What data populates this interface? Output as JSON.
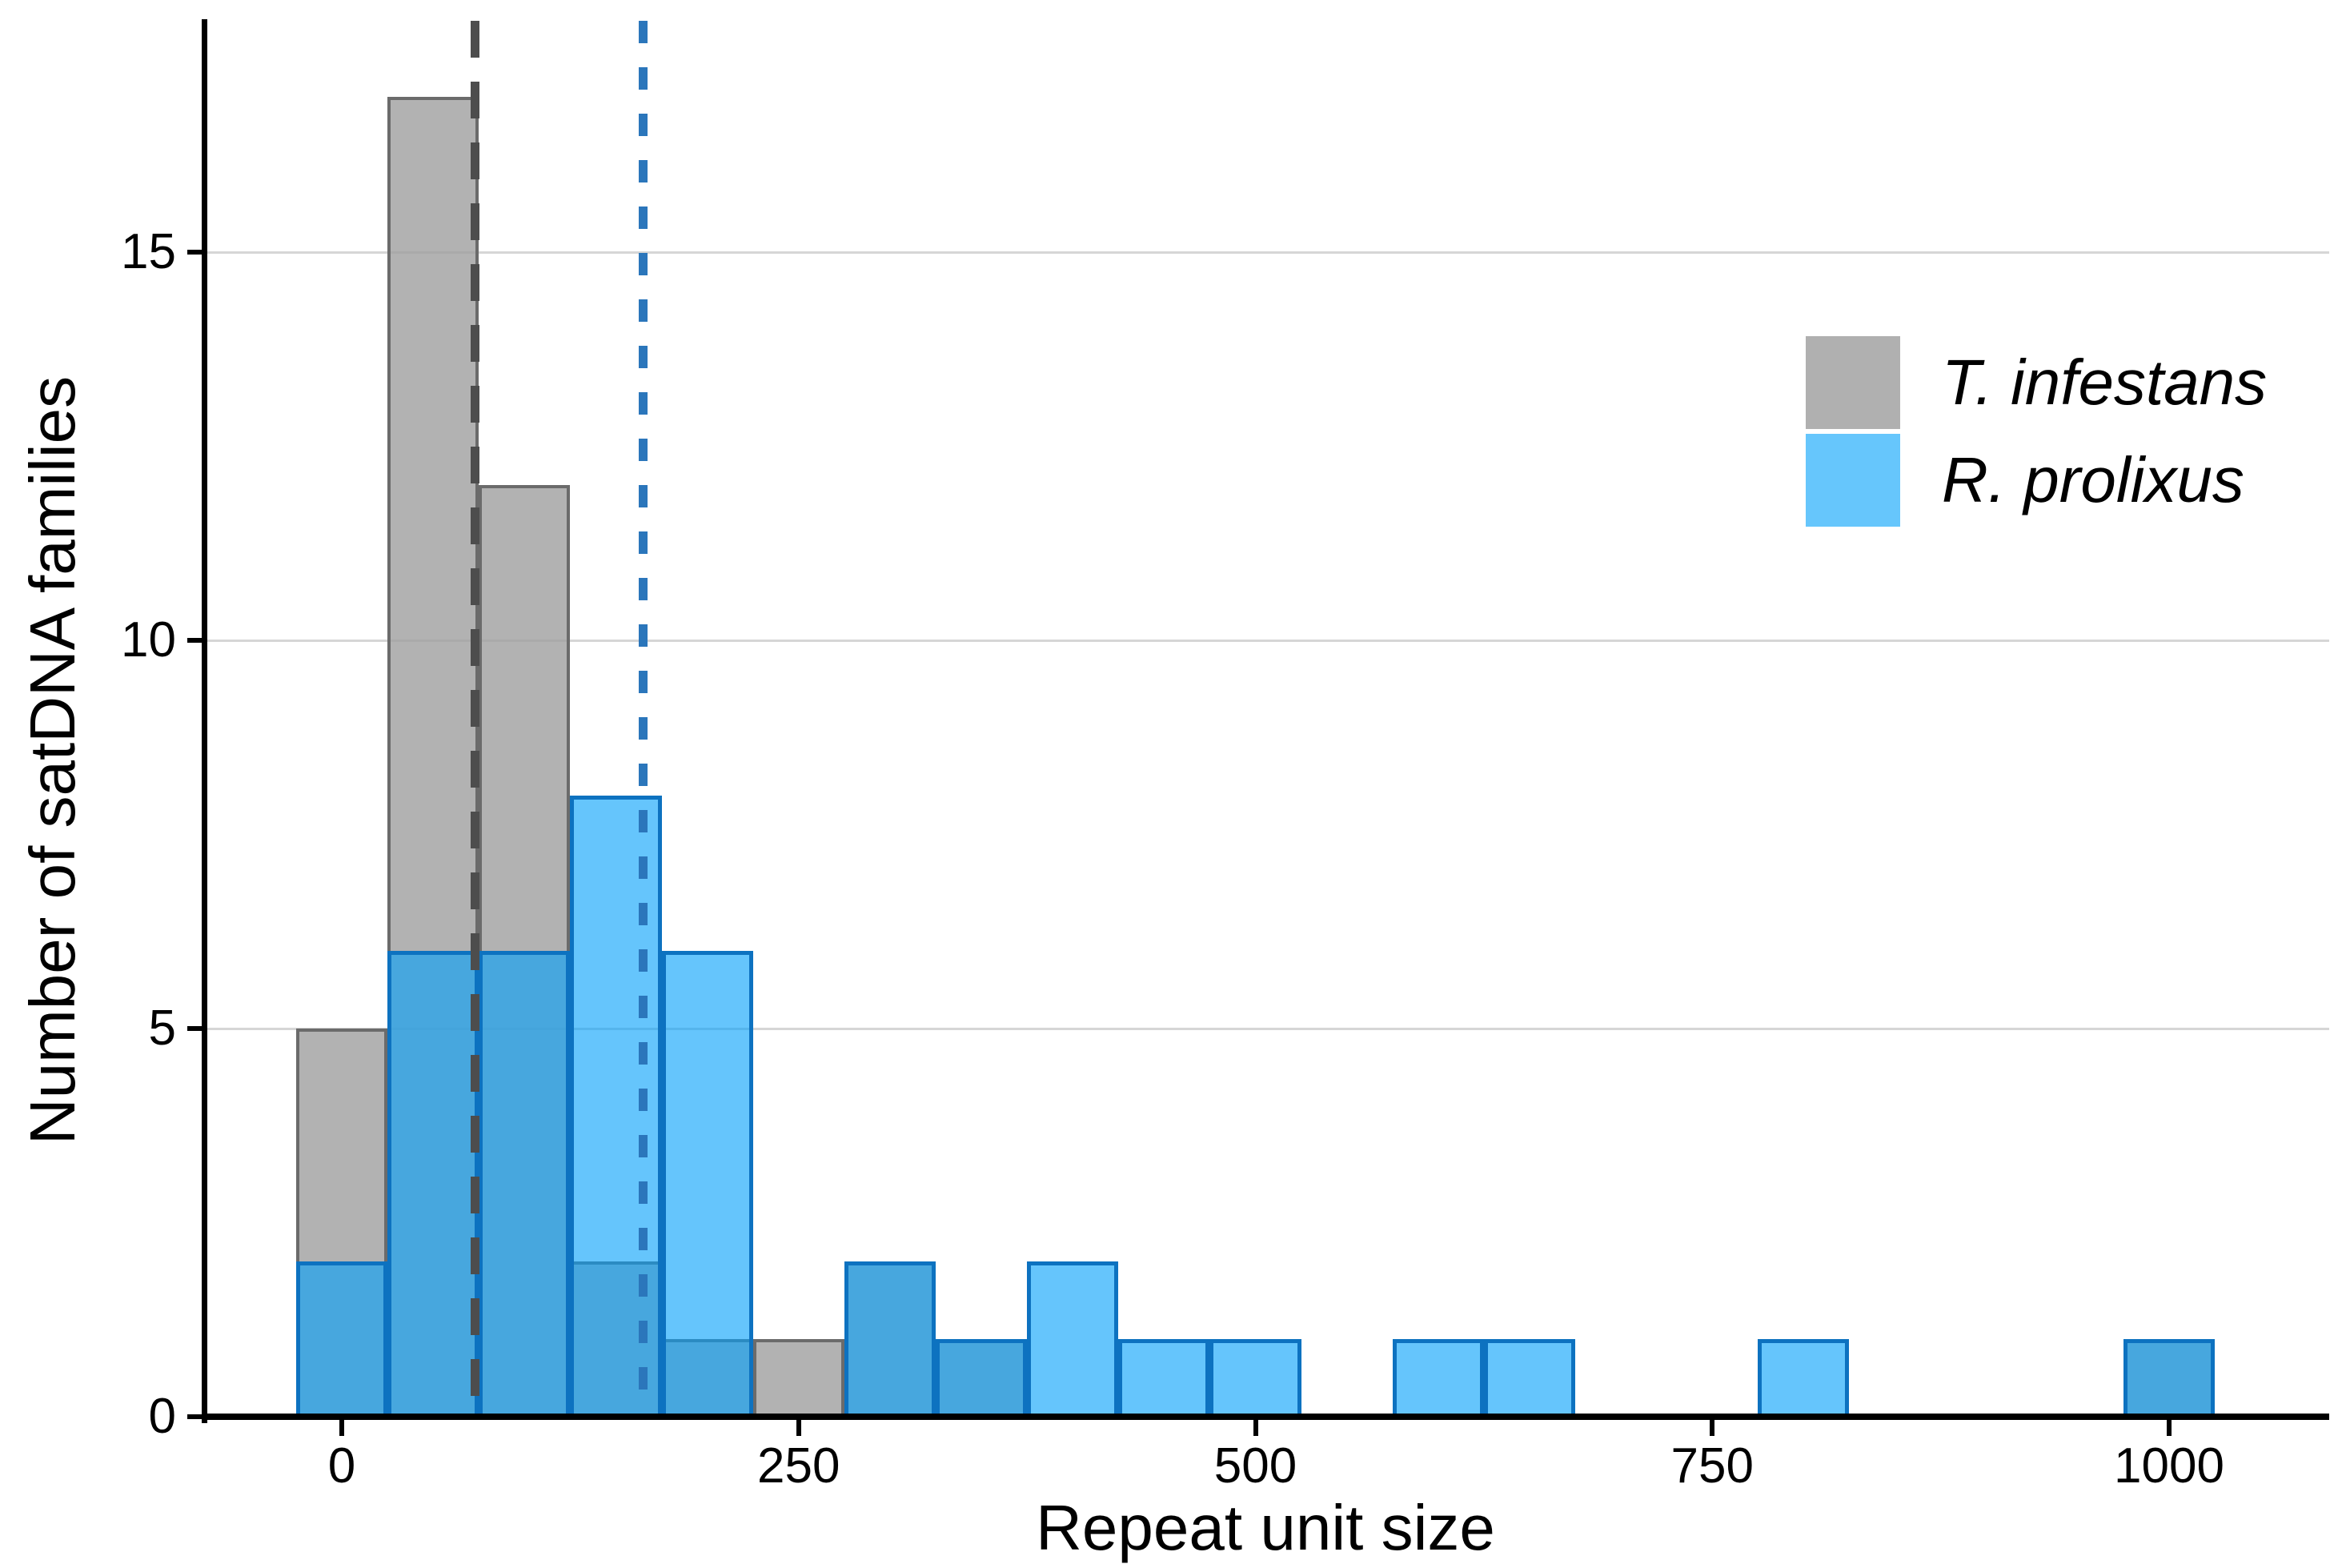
{
  "figure": {
    "xlabel": "Repeat unit size",
    "ylabel": "Number of satDNA families",
    "x_tick_labels": [
      "0",
      "250",
      "500",
      "750",
      "1000"
    ],
    "y_tick_labels": [
      "0",
      "5",
      "10",
      "15"
    ]
  },
  "legend": {
    "items": [
      {
        "label": "T. infestans",
        "color": "#B0B0B0"
      },
      {
        "label": "R. prolixus",
        "color": "#66C6FC"
      }
    ]
  },
  "colors": {
    "background": "#FFFFFF",
    "axis": "#000000",
    "gridline": "#D6D6D6",
    "gray_fill": "rgba(159,159,159,0.8)",
    "gray_border": "#6B6B6B",
    "blue_fill": "rgba(4,161,250,0.61)",
    "blue_border": "#0D72C0",
    "gray_dash_line": "#4D4D4D",
    "blue_dash_line": "#2B76BB"
  },
  "chart_data": {
    "type": "bar",
    "subtype": "overlaid-histogram",
    "title": "",
    "xlabel": "Repeat unit size",
    "ylabel": "Number of satDNA families",
    "x_ticks": [
      0,
      250,
      500,
      750,
      1000
    ],
    "y_ticks": [
      0,
      5,
      10,
      15
    ],
    "xlim": [
      -75,
      1090
    ],
    "ylim": [
      0,
      18
    ],
    "grid": "horizontal-only",
    "legend_position": "top-right-inside",
    "bin_start": -25,
    "bin_width": 50,
    "bin_count": 21,
    "series": [
      {
        "name": "T. infestans",
        "fill": "#B2B2B2",
        "border": "#6B6B6B",
        "counts": [
          5,
          17,
          12,
          2,
          1,
          1,
          2,
          1,
          0,
          0,
          0,
          0,
          0,
          0,
          0,
          0,
          0,
          0,
          0,
          0,
          1
        ]
      },
      {
        "name": "R. prolixus",
        "fill": "#66C6FC",
        "border": "#0D72C0",
        "counts": [
          2,
          6,
          6,
          8,
          6,
          0,
          2,
          1,
          2,
          1,
          1,
          0,
          1,
          1,
          0,
          0,
          1,
          0,
          0,
          0,
          1
        ]
      }
    ],
    "overlap_fill": "#4AA7DC",
    "mean_lines": [
      {
        "series": "T. infestans",
        "x": 73,
        "color": "#4D4D4D",
        "dash": [
          46,
          30
        ]
      },
      {
        "series": "R. prolixus",
        "x": 165,
        "color": "#2B76BB",
        "dash": [
          28,
          30
        ]
      }
    ]
  }
}
